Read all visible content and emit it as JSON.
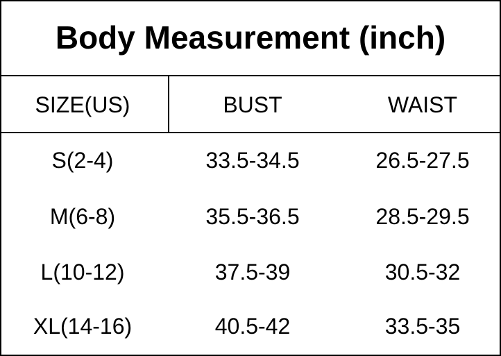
{
  "title": "Body Measurement (inch)",
  "table": {
    "header": [
      "SIZE(US)",
      "BUST",
      "WAIST"
    ],
    "rows": [
      [
        "S(2-4)",
        "33.5-34.5",
        "26.5-27.5"
      ],
      [
        "M(6-8)",
        "35.5-36.5",
        "28.5-29.5"
      ],
      [
        "L(10-12)",
        "37.5-39",
        "30.5-32"
      ],
      [
        "XL(14-16)",
        "40.5-42",
        "33.5-35"
      ]
    ]
  }
}
